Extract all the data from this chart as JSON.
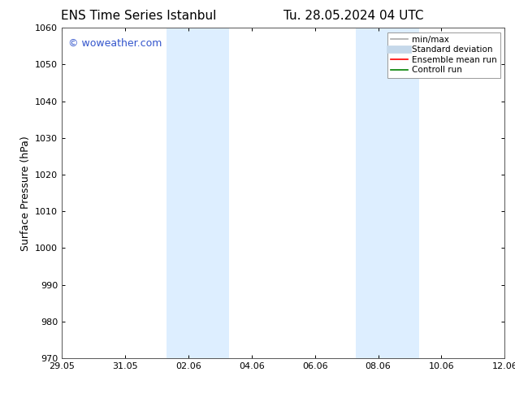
{
  "title_left": "ENS Time Series Istanbul",
  "title_right": "Tu. 28.05.2024 04 UTC",
  "ylabel": "Surface Pressure (hPa)",
  "ylim": [
    970,
    1060
  ],
  "yticks": [
    970,
    980,
    990,
    1000,
    1010,
    1020,
    1030,
    1040,
    1050,
    1060
  ],
  "x_start_num": 0,
  "x_end_num": 14,
  "xtick_labels": [
    "29.05",
    "31.05",
    "02.06",
    "04.06",
    "06.06",
    "08.06",
    "10.06",
    "12.06"
  ],
  "xtick_positions": [
    0,
    2,
    4,
    6,
    8,
    10,
    12,
    14
  ],
  "shaded_bands": [
    {
      "x_start": 3.3,
      "x_end": 5.3
    },
    {
      "x_start": 9.3,
      "x_end": 11.3
    }
  ],
  "shaded_color": "#ddeeff",
  "watermark_text": "© woweather.com",
  "watermark_color": "#3355cc",
  "legend_items": [
    {
      "label": "min/max",
      "color": "#aaaaaa",
      "lw": 1.2
    },
    {
      "label": "Standard deviation",
      "color": "#c5d8ea",
      "lw": 7
    },
    {
      "label": "Ensemble mean run",
      "color": "red",
      "lw": 1.2
    },
    {
      "label": "Controll run",
      "color": "green",
      "lw": 1.2
    }
  ],
  "bg_color": "#ffffff",
  "grid_color": "#dddddd",
  "axis_label_fontsize": 9,
  "title_fontsize": 11,
  "tick_fontsize": 8,
  "watermark_fontsize": 9,
  "legend_fontsize": 7.5
}
